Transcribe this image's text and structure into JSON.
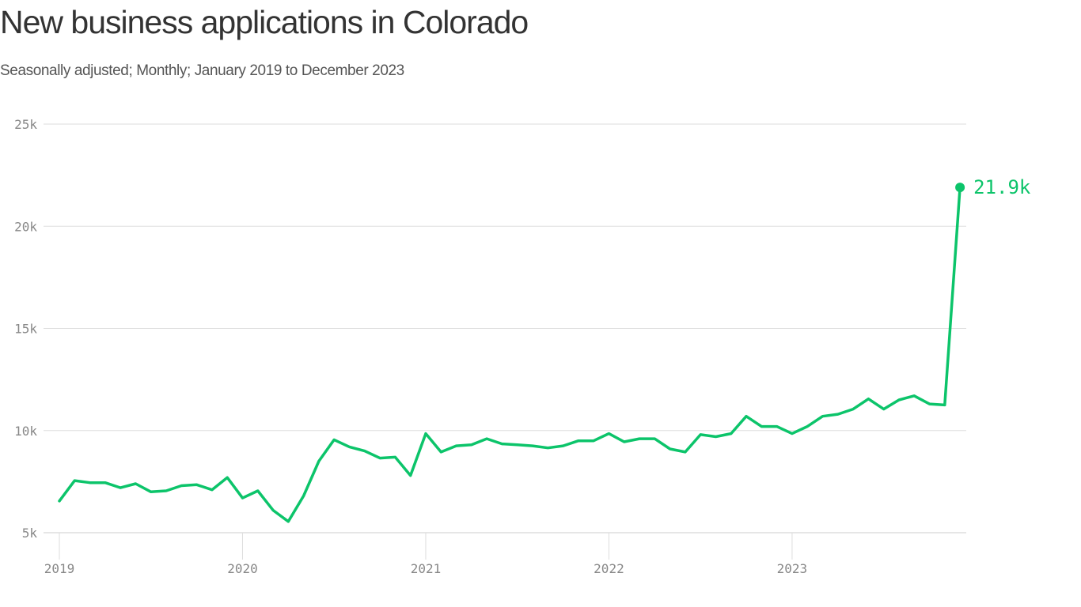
{
  "header": {
    "title": "New business applications in Colorado",
    "subtitle": "Seasonally adjusted; Monthly; January 2019 to December 2023"
  },
  "annotation": {
    "end_label": "21.9k"
  },
  "colors": {
    "line": "#0cc46a",
    "grid": "#dddddd",
    "tick_text": "#888888",
    "title_text": "#333333",
    "subtitle_text": "#555555"
  },
  "chart_data": {
    "type": "line",
    "title": "New business applications in Colorado",
    "subtitle": "Seasonally adjusted; Monthly; January 2019 to December 2023",
    "xlabel": "",
    "ylabel": "",
    "unit": "thousands of applications",
    "ylim": [
      5,
      25
    ],
    "yticks": [
      5,
      10,
      15,
      20,
      25
    ],
    "ytick_labels": [
      "5k",
      "10k",
      "15k",
      "20k",
      "25k"
    ],
    "xticks": [
      "2019",
      "2020",
      "2021",
      "2022",
      "2023"
    ],
    "grid": "horizontal",
    "legend": "none",
    "end_annotation": "21.9k",
    "x": [
      "2019-01",
      "2019-02",
      "2019-03",
      "2019-04",
      "2019-05",
      "2019-06",
      "2019-07",
      "2019-08",
      "2019-09",
      "2019-10",
      "2019-11",
      "2019-12",
      "2020-01",
      "2020-02",
      "2020-03",
      "2020-04",
      "2020-05",
      "2020-06",
      "2020-07",
      "2020-08",
      "2020-09",
      "2020-10",
      "2020-11",
      "2020-12",
      "2021-01",
      "2021-02",
      "2021-03",
      "2021-04",
      "2021-05",
      "2021-06",
      "2021-07",
      "2021-08",
      "2021-09",
      "2021-10",
      "2021-11",
      "2021-12",
      "2022-01",
      "2022-02",
      "2022-03",
      "2022-04",
      "2022-05",
      "2022-06",
      "2022-07",
      "2022-08",
      "2022-09",
      "2022-10",
      "2022-11",
      "2022-12",
      "2023-01",
      "2023-02",
      "2023-03",
      "2023-04",
      "2023-05",
      "2023-06",
      "2023-07",
      "2023-08",
      "2023-09",
      "2023-10",
      "2023-11",
      "2023-12"
    ],
    "series": [
      {
        "name": "New business applications (thousands)",
        "color": "#0cc46a",
        "values": [
          6.55,
          7.55,
          7.45,
          7.45,
          7.2,
          7.4,
          7.0,
          7.05,
          7.3,
          7.35,
          7.1,
          7.7,
          6.7,
          7.05,
          6.1,
          5.55,
          6.8,
          8.5,
          9.55,
          9.2,
          9.0,
          8.65,
          8.7,
          7.8,
          9.85,
          8.95,
          9.25,
          9.3,
          9.6,
          9.35,
          9.3,
          9.25,
          9.15,
          9.25,
          9.5,
          9.5,
          9.85,
          9.45,
          9.6,
          9.6,
          9.1,
          8.95,
          9.8,
          9.7,
          9.85,
          10.7,
          10.2,
          10.2,
          9.85,
          10.2,
          10.7,
          10.8,
          11.05,
          11.55,
          11.05,
          11.5,
          11.7,
          11.3,
          11.25,
          21.9
        ]
      }
    ]
  }
}
